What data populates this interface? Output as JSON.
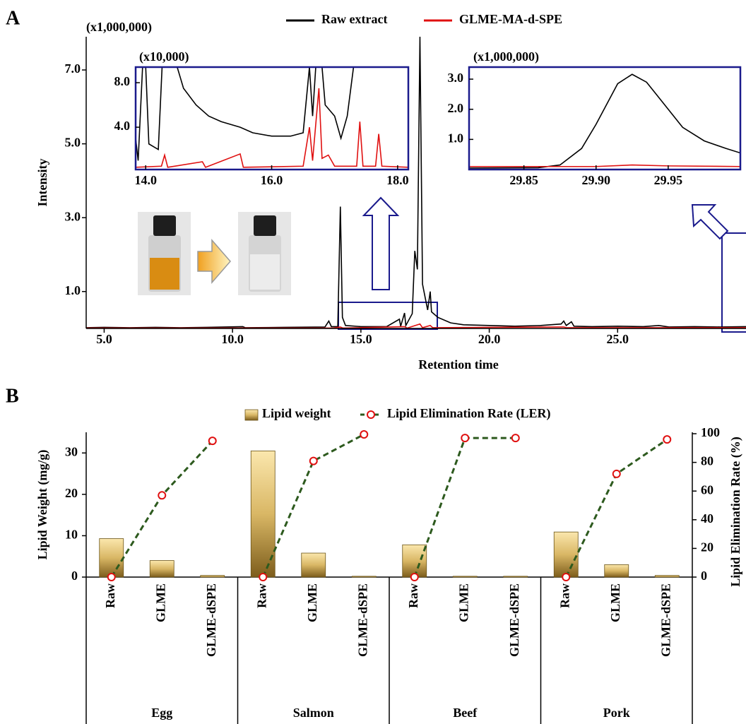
{
  "chart_data": [
    {
      "type": "line",
      "panel": "A",
      "multiplier": "(x1,000,000)",
      "xlabel": "Retention time",
      "ylabel": "Intensity",
      "xlim": [
        4.3,
        30
      ],
      "ylim": [
        0,
        7.9
      ],
      "xticks": [
        {
          "value": 5,
          "label": "5.0"
        },
        {
          "value": 10,
          "label": "10.0"
        },
        {
          "value": 15,
          "label": "15.0"
        },
        {
          "value": 20,
          "label": "20.0"
        },
        {
          "value": 25,
          "label": "25.0"
        }
      ],
      "yticks": [
        {
          "value": 1,
          "label": "1.0"
        },
        {
          "value": 3,
          "label": "3.0"
        },
        {
          "value": 5,
          "label": "5.0"
        },
        {
          "value": 7,
          "label": "7.0"
        }
      ],
      "series": [
        {
          "name": "Raw extract",
          "color": "#000000",
          "x": [
            4.3,
            5.0,
            6.0,
            7.0,
            8.0,
            9.0,
            10.4,
            10.5,
            12.0,
            13.6,
            13.75,
            13.85,
            14.1,
            14.2,
            14.28,
            14.4,
            15.0,
            16.0,
            16.5,
            16.55,
            16.7,
            16.75,
            17.0,
            17.1,
            17.2,
            17.3,
            17.4,
            17.6,
            17.7,
            17.75,
            18.0,
            18.5,
            19.0,
            20.0,
            21.0,
            22.0,
            22.8,
            22.9,
            23.0,
            23.2,
            23.3,
            24.0,
            25.0,
            26.0,
            26.6,
            27.0,
            28.0,
            29.0,
            30.0
          ],
          "values": [
            0.02,
            0.03,
            0.02,
            0.03,
            0.02,
            0.03,
            0.05,
            0.02,
            0.03,
            0.04,
            0.2,
            0.05,
            0.05,
            3.3,
            0.3,
            0.08,
            0.05,
            0.05,
            0.25,
            0.06,
            0.42,
            0.08,
            0.4,
            2.1,
            1.6,
            7.9,
            1.2,
            0.5,
            1.0,
            0.45,
            0.3,
            0.15,
            0.1,
            0.08,
            0.06,
            0.08,
            0.12,
            0.2,
            0.08,
            0.18,
            0.06,
            0.05,
            0.06,
            0.05,
            0.08,
            0.04,
            0.05,
            0.04,
            0.05
          ]
        },
        {
          "name": "GLME-MA-d-SPE",
          "color": "#e01010",
          "x": [
            4.3,
            10.0,
            13.9,
            14.2,
            14.3,
            16.7,
            16.8,
            17.3,
            17.4,
            17.7,
            17.8,
            20.0,
            22.9,
            23.0,
            26.0,
            30.0
          ],
          "values": [
            0.01,
            0.01,
            0.01,
            0.04,
            0.01,
            0.05,
            0.01,
            0.12,
            0.02,
            0.08,
            0.02,
            0.03,
            0.04,
            0.02,
            0.02,
            0.02
          ]
        }
      ]
    },
    {
      "type": "line",
      "multiplier": "(x10,000)",
      "xlim": [
        13.84,
        18.17
      ],
      "ylim": [
        0.2,
        9.4
      ],
      "xticks": [
        {
          "value": 14,
          "label": "14.0"
        },
        {
          "value": 16,
          "label": "16.0"
        },
        {
          "value": 18,
          "label": "18.0"
        }
      ],
      "yticks": [
        {
          "value": 4,
          "label": "4.0"
        },
        {
          "value": 8,
          "label": "8.0"
        }
      ],
      "series": [
        {
          "color": "#000000",
          "x": [
            13.84,
            13.88,
            13.95,
            14.0,
            14.05,
            14.2,
            14.26,
            14.5,
            14.6,
            14.8,
            15.0,
            15.2,
            15.5,
            15.7,
            16.0,
            16.3,
            16.5,
            16.6,
            16.65,
            16.7,
            16.8,
            16.85,
            17.0,
            17.1,
            17.2,
            17.3
          ],
          "values": [
            3.0,
            1.0,
            9.4,
            9.4,
            2.5,
            2.0,
            9.4,
            9.4,
            7.5,
            6.0,
            5.0,
            4.5,
            4.0,
            3.5,
            3.2,
            3.2,
            3.5,
            9.4,
            5.0,
            9.4,
            9.4,
            6.0,
            5.0,
            3.0,
            5.0,
            9.4
          ]
        },
        {
          "color": "#e01010",
          "x": [
            13.84,
            14.25,
            14.3,
            14.35,
            14.9,
            14.95,
            15.5,
            15.55,
            16.5,
            16.6,
            16.65,
            16.75,
            16.8,
            16.9,
            17.0,
            17.35,
            17.4,
            17.45,
            17.65,
            17.7,
            17.75,
            18.17
          ],
          "values": [
            0.4,
            0.5,
            1.5,
            0.4,
            0.9,
            0.4,
            1.6,
            0.4,
            0.5,
            4.0,
            1.0,
            7.5,
            1.2,
            1.5,
            0.5,
            0.5,
            4.5,
            0.5,
            0.5,
            3.4,
            0.5,
            0.4
          ]
        }
      ]
    },
    {
      "type": "line",
      "multiplier": "(x1,000,000)",
      "xlim": [
        29.812,
        30.0
      ],
      "ylim": [
        0,
        3.4
      ],
      "xticks": [
        29.85,
        {
          "value": 29.9,
          "label": "29.90"
        },
        29.95
      ],
      "yticks": [
        {
          "value": 1,
          "label": "1.0"
        },
        {
          "value": 2,
          "label": "2.0"
        },
        {
          "value": 3,
          "label": "3.0"
        }
      ],
      "series": [
        {
          "color": "#000000",
          "x": [
            29.812,
            29.86,
            29.875,
            29.89,
            29.9,
            29.915,
            29.925,
            29.935,
            29.945,
            29.96,
            29.975,
            29.99,
            30.0
          ],
          "values": [
            0.05,
            0.06,
            0.15,
            0.7,
            1.5,
            2.85,
            3.16,
            2.9,
            2.3,
            1.4,
            0.95,
            0.7,
            0.55
          ]
        },
        {
          "color": "#e01010",
          "x": [
            29.812,
            29.9,
            29.925,
            29.95,
            30.0
          ],
          "values": [
            0.1,
            0.1,
            0.15,
            0.12,
            0.1
          ]
        }
      ]
    },
    {
      "type": "bar",
      "panel": "B",
      "ylabel": "Lipid Weight (mg/g)",
      "y2label": "Lipid Elimination Rate (%)",
      "categories": [
        "Raw",
        "GLME",
        "GLME-dSPE",
        "Raw",
        "GLME",
        "GLME-dSPE",
        "Raw",
        "GLME",
        "GLME-dSPE",
        "Raw",
        "GLME",
        "GLME-dSPE"
      ],
      "groups": [
        "Egg",
        "Salmon",
        "Beef",
        "Pork"
      ],
      "ylim": [
        0,
        35
      ],
      "yticks": [
        0,
        10,
        20,
        30
      ],
      "y2lim": [
        0,
        101
      ],
      "y2ticks": [
        0,
        20,
        40,
        60,
        80,
        100
      ],
      "series": [
        {
          "name": "Lipid weight",
          "color": "#c9a54a",
          "values": [
            9.3,
            4.0,
            0.4,
            30.5,
            5.8,
            0.2,
            7.8,
            0.2,
            0.2,
            10.9,
            3.0,
            0.4
          ]
        },
        {
          "name": "Lipid Elimination Rate (LER)",
          "color": "#2d5a1e",
          "axis": "y2",
          "values": [
            0,
            57,
            95,
            0,
            81,
            99.5,
            0,
            97,
            97,
            0,
            72,
            96
          ]
        }
      ]
    }
  ]
}
